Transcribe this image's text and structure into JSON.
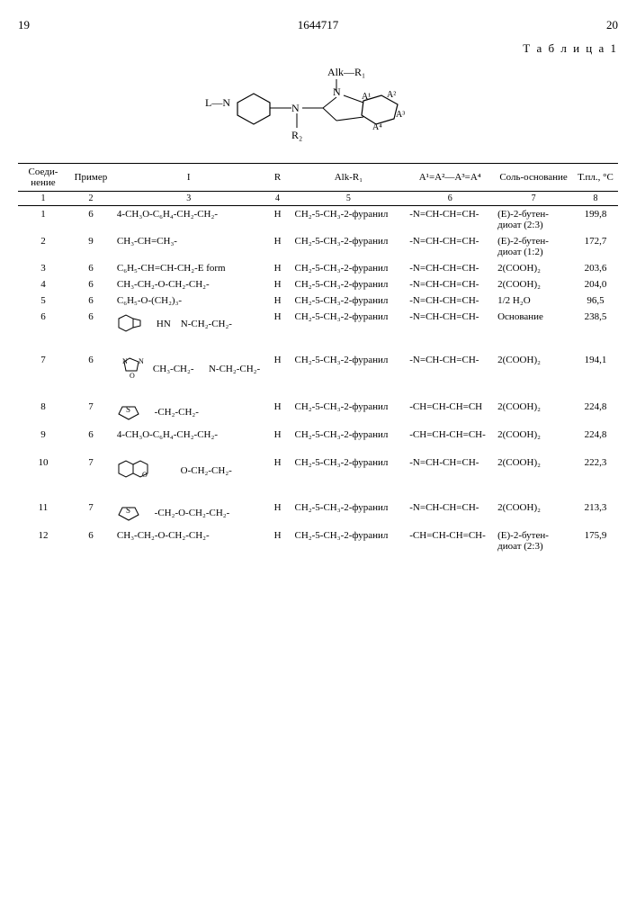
{
  "page": {
    "left_num": "19",
    "doc_num": "1644717",
    "right_num": "20",
    "table_label": "Т а б л и ц а 1"
  },
  "structure_label": {
    "top": "Alk—R₁",
    "left": "L—N",
    "mid_n": "N",
    "r2": "R₂",
    "a1": "A¹",
    "a2": "A²",
    "a3": "A³",
    "a4": "A⁴"
  },
  "table": {
    "headers": [
      "Соеди-\nнение",
      "Пример",
      "I",
      "R",
      "Alk-R₁",
      "A¹=A²—A³=A⁴",
      "Соль-основание",
      "Т.пл., °C"
    ],
    "colnums": [
      "1",
      "2",
      "3",
      "4",
      "5",
      "6",
      "7",
      "8"
    ],
    "rows": [
      {
        "n": "1",
        "ex": "6",
        "I": "4-CH₃O-C₆H₄-CH₂-CH₂-",
        "R": "H",
        "alk": "CH₂-5-CH₃-2-фуранил",
        "A": "-N=CH-CH=CH-",
        "salt": "(E)-2-бутен-диоат (2:3)",
        "mp": "199,8"
      },
      {
        "n": "2",
        "ex": "9",
        "I": "CH₃-CH=CH₃-",
        "R": "H",
        "alk": "CH₂-5-CH₃-2-фуранил",
        "A": "-N=CH-CH=CH-",
        "salt": "(E)-2-бутен-диоат (1:2)",
        "mp": "172,7"
      },
      {
        "n": "3",
        "ex": "6",
        "I": "C₆H₅-CH=CH-CH₂-E form",
        "R": "H",
        "alk": "CH₂-5-CH₃-2-фуранил",
        "A": "-N=CH-CH=CH-",
        "salt": "2(COOH)₂",
        "mp": "203,6"
      },
      {
        "n": "4",
        "ex": "6",
        "I": "CH₃-CH₂-O-CH₂-CH₂-",
        "R": "H",
        "alk": "CH₂-5-CH₃-2-фуранил",
        "A": "-N=CH-CH=CH-",
        "salt": "2(COOH)₂",
        "mp": "204,0"
      },
      {
        "n": "5",
        "ex": "6",
        "I": "C₆H₅-O-(CH₂)₃-",
        "R": "H",
        "alk": "CH₂-5-CH₃-2-фуранил",
        "A": "-N=CH-CH=CH-",
        "salt": "1/2 H₂O",
        "mp": "96,5"
      },
      {
        "n": "6",
        "ex": "6",
        "I": "HN    N-CH₂-CH₂-",
        "R": "H",
        "alk": "CH₂-5-CH₃-2-фуранил",
        "A": "-N=CH-CH=CH-",
        "salt": "Основание",
        "mp": "238,5",
        "svg": "benzimidazole"
      },
      {
        "n": "7",
        "ex": "6",
        "I": "CH₃-CH₂-      N-CH₂-CH₂-",
        "R": "H",
        "alk": "CH₂-5-CH₃-2-фуранил",
        "A": "-N=CH-CH=CH-",
        "salt": "2(COOH)₂",
        "mp": "194,1",
        "svg": "oxadiazole",
        "gap": true
      },
      {
        "n": "8",
        "ex": "7",
        "I": "     -CH₂-CH₂-",
        "R": "H",
        "alk": "CH₂-5-CH₃-2-фуранил",
        "A": "-CH=CH-CH=CH",
        "salt": "2(COOH)₂",
        "mp": "224,8",
        "svg": "thiophene",
        "gap": true
      },
      {
        "n": "9",
        "ex": "6",
        "I": "4-CH₃O-C₆H₄-CH₂-CH₂-",
        "R": "H",
        "alk": "CH₂-5-CH₃-2-фуранил",
        "A": "-CH=CH-CH=CH-",
        "salt": "2(COOH)₂",
        "mp": "224,8"
      },
      {
        "n": "10",
        "ex": "7",
        "I": "         O-CH₂-CH₂-",
        "R": "H",
        "alk": "CH₂-5-CH₃-2-фуранил",
        "A": "-N=CH-CH=CH-",
        "salt": "2(COOH)₂",
        "mp": "222,3",
        "svg": "chromene",
        "gap": true
      },
      {
        "n": "11",
        "ex": "7",
        "I": "     -CH₂-O-CH₂-CH₂-",
        "R": "H",
        "alk": "CH₂-5-CH₃-2-фуранил",
        "A": "-N=CH-CH=CH-",
        "salt": "2(COOH)₂",
        "mp": "213,3",
        "svg": "thiophene",
        "gap": true
      },
      {
        "n": "12",
        "ex": "6",
        "I": "CH₃-CH₂-O-CH₂-CH₂-",
        "R": "H",
        "alk": "CH₂-5-CH₃-2-фуранил",
        "A": "-CH=CH-CH=CH-",
        "salt": "(E)-2-бутен-диоат (2:3)",
        "mp": "175,9"
      }
    ]
  },
  "svg_defs": {
    "benzimidazole": "<svg width='44' height='26' viewBox='0 0 44 26'><polygon points='2,8 10,4 18,8 18,18 10,22 2,18' fill='none' stroke='#000' stroke-width='1'/><polyline points='18,8 26,10 26,16 18,18' fill='none' stroke='#000' stroke-width='1'/></svg>",
    "oxadiazole": "<svg width='40' height='30' viewBox='0 0 40 30'><polygon points='14,4 24,8 22,18 10,18 8,8' fill='none' stroke='#000' stroke-width='1'/><text x='6' y='10' font-size='8'>N</text><text x='24' y='10' font-size='8'>N</text><text x='14' y='26' font-size='8'>O</text></svg>",
    "thiophene": "<svg width='28' height='22' viewBox='0 0 28 22'><polygon points='6,6 20,6 24,14 13,20 2,14' fill='none' stroke='#000' stroke-width='1'/><text x='10' y='12' font-size='9'>S</text></svg>",
    "chromene": "<svg width='46' height='28' viewBox='0 0 46 28'><polygon points='2,8 10,4 18,8 18,18 10,22 2,18' fill='none' stroke='#000' stroke-width='1'/><polygon points='18,8 26,4 34,8 34,18 26,22 18,18' fill='none' stroke='#000' stroke-width='1'/><text x='28' y='22' font-size='8'>O</text></svg>"
  }
}
